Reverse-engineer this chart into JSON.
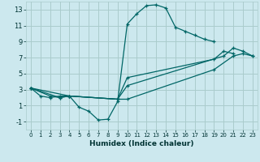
{
  "xlabel": "Humidex (Indice chaleur)",
  "bg_color": "#cce8ee",
  "grid_color": "#aacccc",
  "line_color": "#006666",
  "xlim": [
    -0.5,
    23.5
  ],
  "ylim": [
    -2,
    14
  ],
  "xticks": [
    0,
    1,
    2,
    3,
    4,
    5,
    6,
    7,
    8,
    9,
    10,
    11,
    12,
    13,
    14,
    15,
    16,
    17,
    18,
    19,
    20,
    21,
    22,
    23
  ],
  "yticks": [
    -1,
    1,
    3,
    5,
    7,
    9,
    11,
    13
  ],
  "lines": [
    {
      "x": [
        0,
        1,
        2,
        3,
        4,
        5,
        6,
        7,
        8,
        9,
        10,
        11,
        12,
        13,
        14,
        15,
        16,
        17,
        18,
        19
      ],
      "y": [
        3.2,
        2.2,
        2.0,
        2.2,
        2.2,
        0.8,
        0.3,
        -0.8,
        -0.7,
        1.5,
        11.2,
        12.5,
        13.5,
        13.6,
        13.2,
        10.8,
        10.3,
        9.8,
        9.3,
        9.0
      ]
    },
    {
      "x": [
        0,
        2,
        3,
        4,
        9,
        10,
        19,
        21,
        22,
        23
      ],
      "y": [
        3.2,
        2.2,
        2.0,
        2.2,
        1.8,
        1.8,
        5.5,
        7.2,
        7.5,
        7.2
      ]
    },
    {
      "x": [
        0,
        3,
        4,
        9,
        10,
        20,
        21,
        22,
        23
      ],
      "y": [
        3.2,
        2.0,
        2.2,
        1.8,
        3.5,
        7.2,
        8.2,
        7.8,
        7.2
      ]
    },
    {
      "x": [
        0,
        4,
        9,
        10,
        19,
        20,
        21
      ],
      "y": [
        3.2,
        2.2,
        1.8,
        4.5,
        6.8,
        7.8,
        7.5
      ]
    }
  ]
}
